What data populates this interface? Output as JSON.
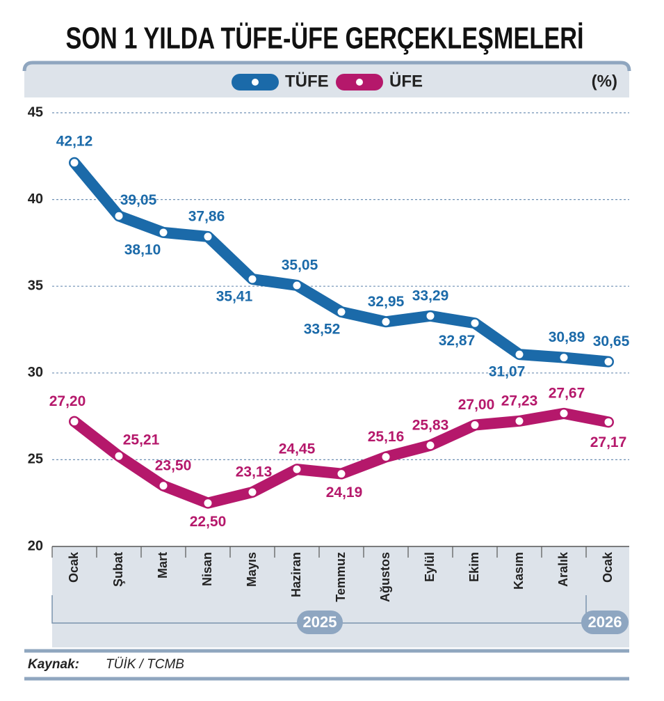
{
  "chart_data": {
    "type": "line",
    "title": "SON 1 YILDA TÜFE-ÜFE GERÇEKLEŞMELERİ",
    "unit_label": "(%)",
    "categories": [
      "Ocak",
      "Şubat",
      "Mart",
      "Nisan",
      "Mayıs",
      "Haziran",
      "Temmuz",
      "Ağustos",
      "Eylül",
      "Ekim",
      "Kasım",
      "Aralık",
      "Ocak"
    ],
    "x_group_labels": [
      "2025",
      "2026"
    ],
    "series": [
      {
        "name": "TÜFE",
        "color": "#1b6aa9",
        "values": [
          42.12,
          39.05,
          38.1,
          37.86,
          35.41,
          35.05,
          33.52,
          32.95,
          33.29,
          32.87,
          31.07,
          30.89,
          30.65
        ],
        "value_labels": [
          "42,12",
          "39,05",
          "38,10",
          "37,86",
          "35,41",
          "35,05",
          "33,52",
          "32,95",
          "33,29",
          "32,87",
          "31,07",
          "30,89",
          "30,65"
        ]
      },
      {
        "name": "ÜFE",
        "color": "#b5186b",
        "values": [
          27.2,
          25.21,
          23.5,
          22.5,
          23.13,
          24.45,
          24.19,
          25.16,
          25.83,
          27.0,
          27.23,
          27.67,
          27.17
        ],
        "value_labels": [
          "27,20",
          "25,21",
          "23,50",
          "22,50",
          "23,13",
          "24,45",
          "24,19",
          "25,16",
          "25,83",
          "27,00",
          "27,23",
          "27,67",
          "27,17"
        ]
      }
    ],
    "ylim": [
      20,
      45
    ],
    "yticks": [
      20,
      25,
      30,
      35,
      40,
      45
    ],
    "grid": true,
    "source_label": "Kaynak:",
    "source": "TÜİK / TCMB"
  }
}
